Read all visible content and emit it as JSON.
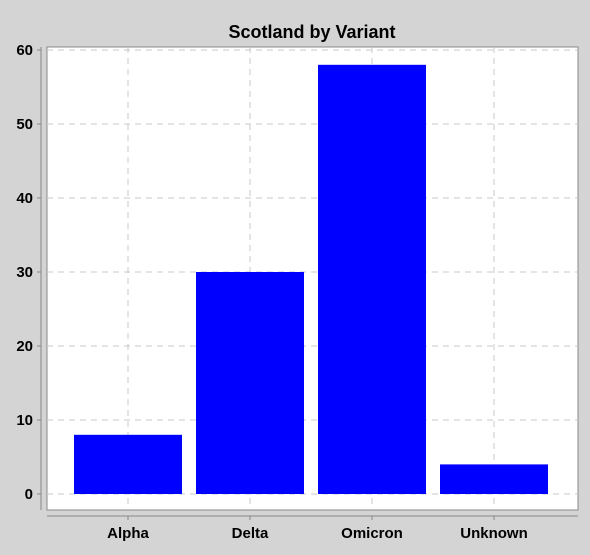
{
  "chart_data": {
    "type": "bar",
    "title": "Scotland by Variant",
    "categories": [
      "Alpha",
      "Delta",
      "Omicron",
      "Unknown"
    ],
    "values": [
      8,
      30,
      58,
      4
    ],
    "xlabel": "",
    "ylabel": "",
    "ylim": [
      0,
      60
    ],
    "yticks": [
      0,
      10,
      20,
      30,
      40,
      50,
      60
    ],
    "grid": true,
    "legend": "none",
    "colors": {
      "bar": "#0000ff",
      "plot_background": "#ffffff",
      "page_background": "#d4d4d4",
      "grid": "#c8c8c8",
      "axis": "#888888"
    }
  }
}
